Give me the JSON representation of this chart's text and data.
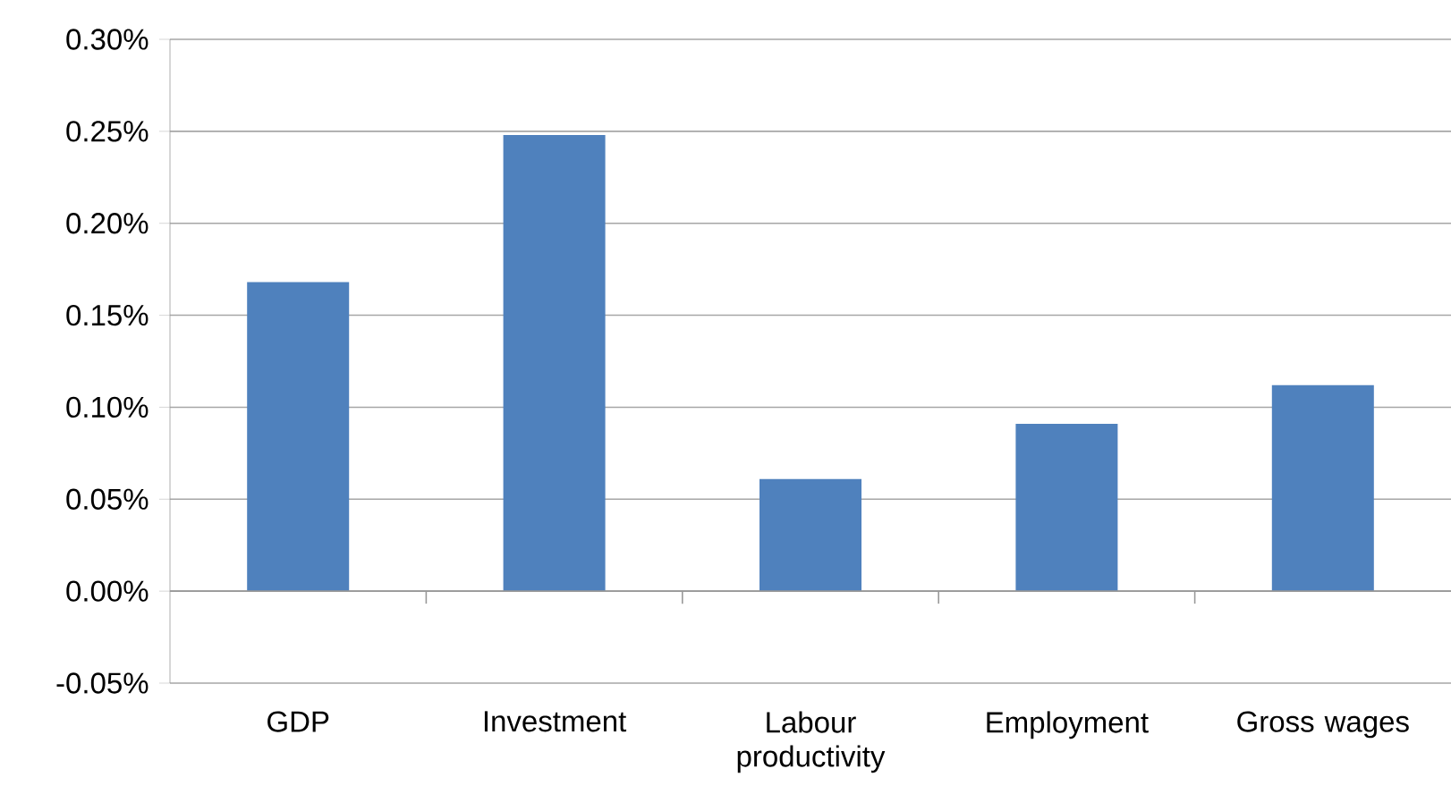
{
  "chart_data": {
    "type": "bar",
    "categories": [
      "GDP",
      "Investment",
      "Labour productivity",
      "Employment",
      "Gross wages"
    ],
    "values": [
      0.168,
      0.248,
      0.061,
      0.091,
      0.112
    ],
    "color": "#4f81bd",
    "ylim": [
      -0.05,
      0.3
    ],
    "yticks": [
      {
        "value": -0.05,
        "label": "-0.05%"
      },
      {
        "value": 0.0,
        "label": "0.00%"
      },
      {
        "value": 0.05,
        "label": "0.05%"
      },
      {
        "value": 0.1,
        "label": "0.10%"
      },
      {
        "value": 0.15,
        "label": "0.15%"
      },
      {
        "value": 0.2,
        "label": "0.20%"
      },
      {
        "value": 0.25,
        "label": "0.25%"
      },
      {
        "value": 0.3,
        "label": "0.30%"
      }
    ],
    "grid": "y"
  }
}
